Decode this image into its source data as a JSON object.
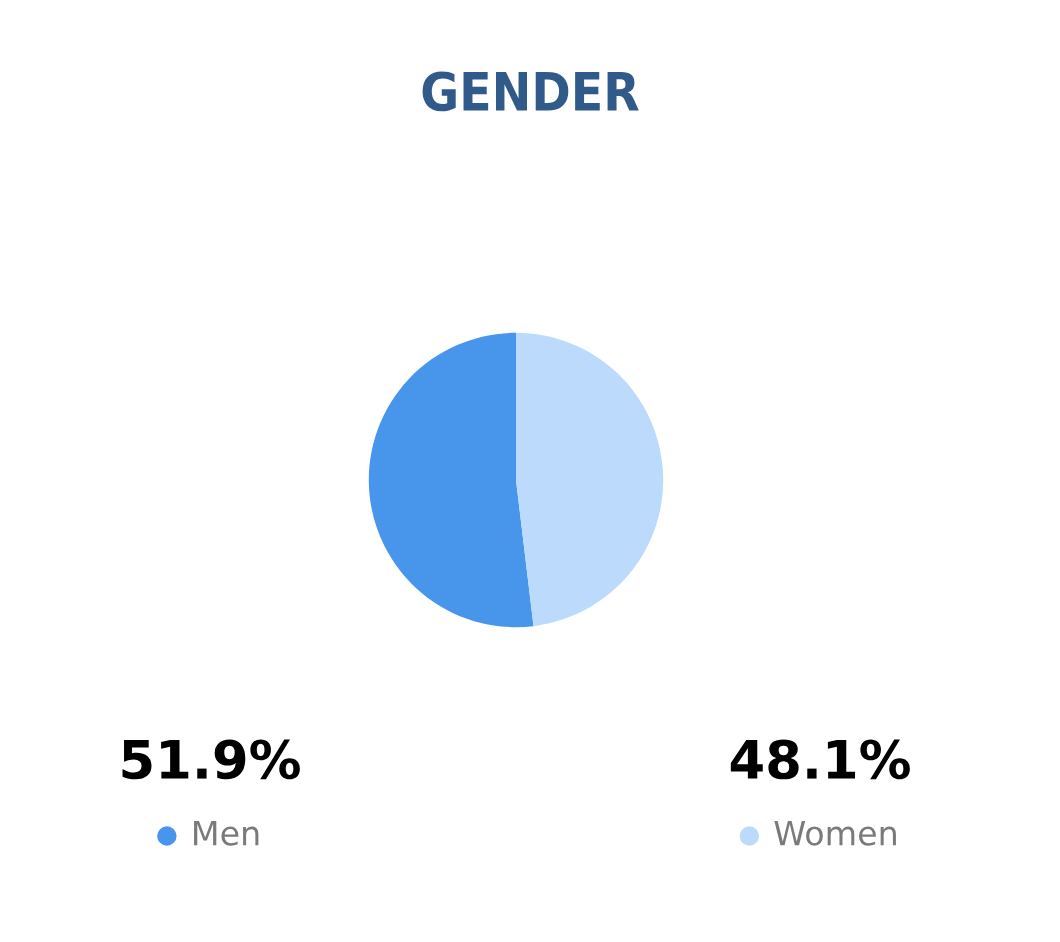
{
  "chart_data": {
    "type": "pie",
    "title": "GENDER",
    "categories": [
      "Men",
      "Women"
    ],
    "values": [
      51.9,
      48.1
    ],
    "colors": [
      "#4896ec",
      "#bcdafb"
    ],
    "value_labels": [
      "51.9%",
      "48.1%"
    ],
    "legend": "bottom"
  }
}
